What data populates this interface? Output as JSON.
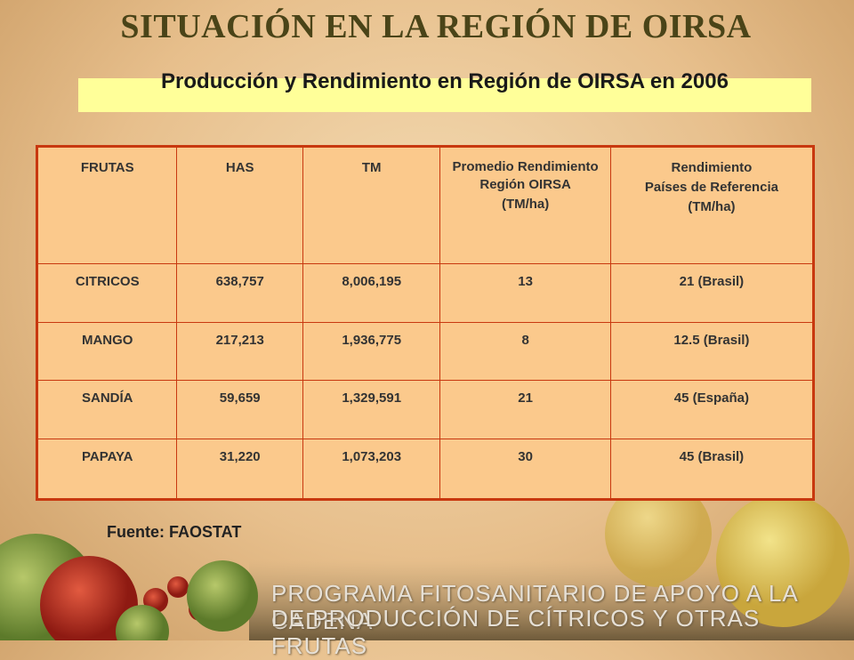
{
  "title": "SITUACIÓN EN LA REGIÓN DE OIRSA",
  "subtitle": "Producción y Rendimiento en Región de OIRSA en 2006",
  "table": {
    "header": [
      [
        "FRUTAS"
      ],
      [
        "HAS"
      ],
      [
        "TM"
      ],
      [
        "Promedio Rendimiento",
        "Región OIRSA",
        "(TM/ha)"
      ],
      [
        "Rendimiento",
        "Países de Referencia",
        "(TM/ha)"
      ]
    ],
    "rows": [
      [
        "CITRICOS",
        "638,757",
        "8,006,195",
        "13",
        "21 (Brasil)"
      ],
      [
        "MANGO",
        "217,213",
        "1,936,775",
        "8",
        "12.5 (Brasil)"
      ],
      [
        "SANDÍA",
        "59,659",
        "1,329,591",
        "21",
        "45 (España)"
      ],
      [
        "PAPAYA",
        "31,220",
        "1,073,203",
        "30",
        "45 (Brasil)"
      ]
    ]
  },
  "source": "Fuente: FAOSTAT",
  "footer": [
    "PROGRAMA FITOSANITARIO DE APOYO A LA CADENA",
    "DE PRODUCCIÓN DE CÍTRICOS Y OTRAS FRUTAS"
  ]
}
